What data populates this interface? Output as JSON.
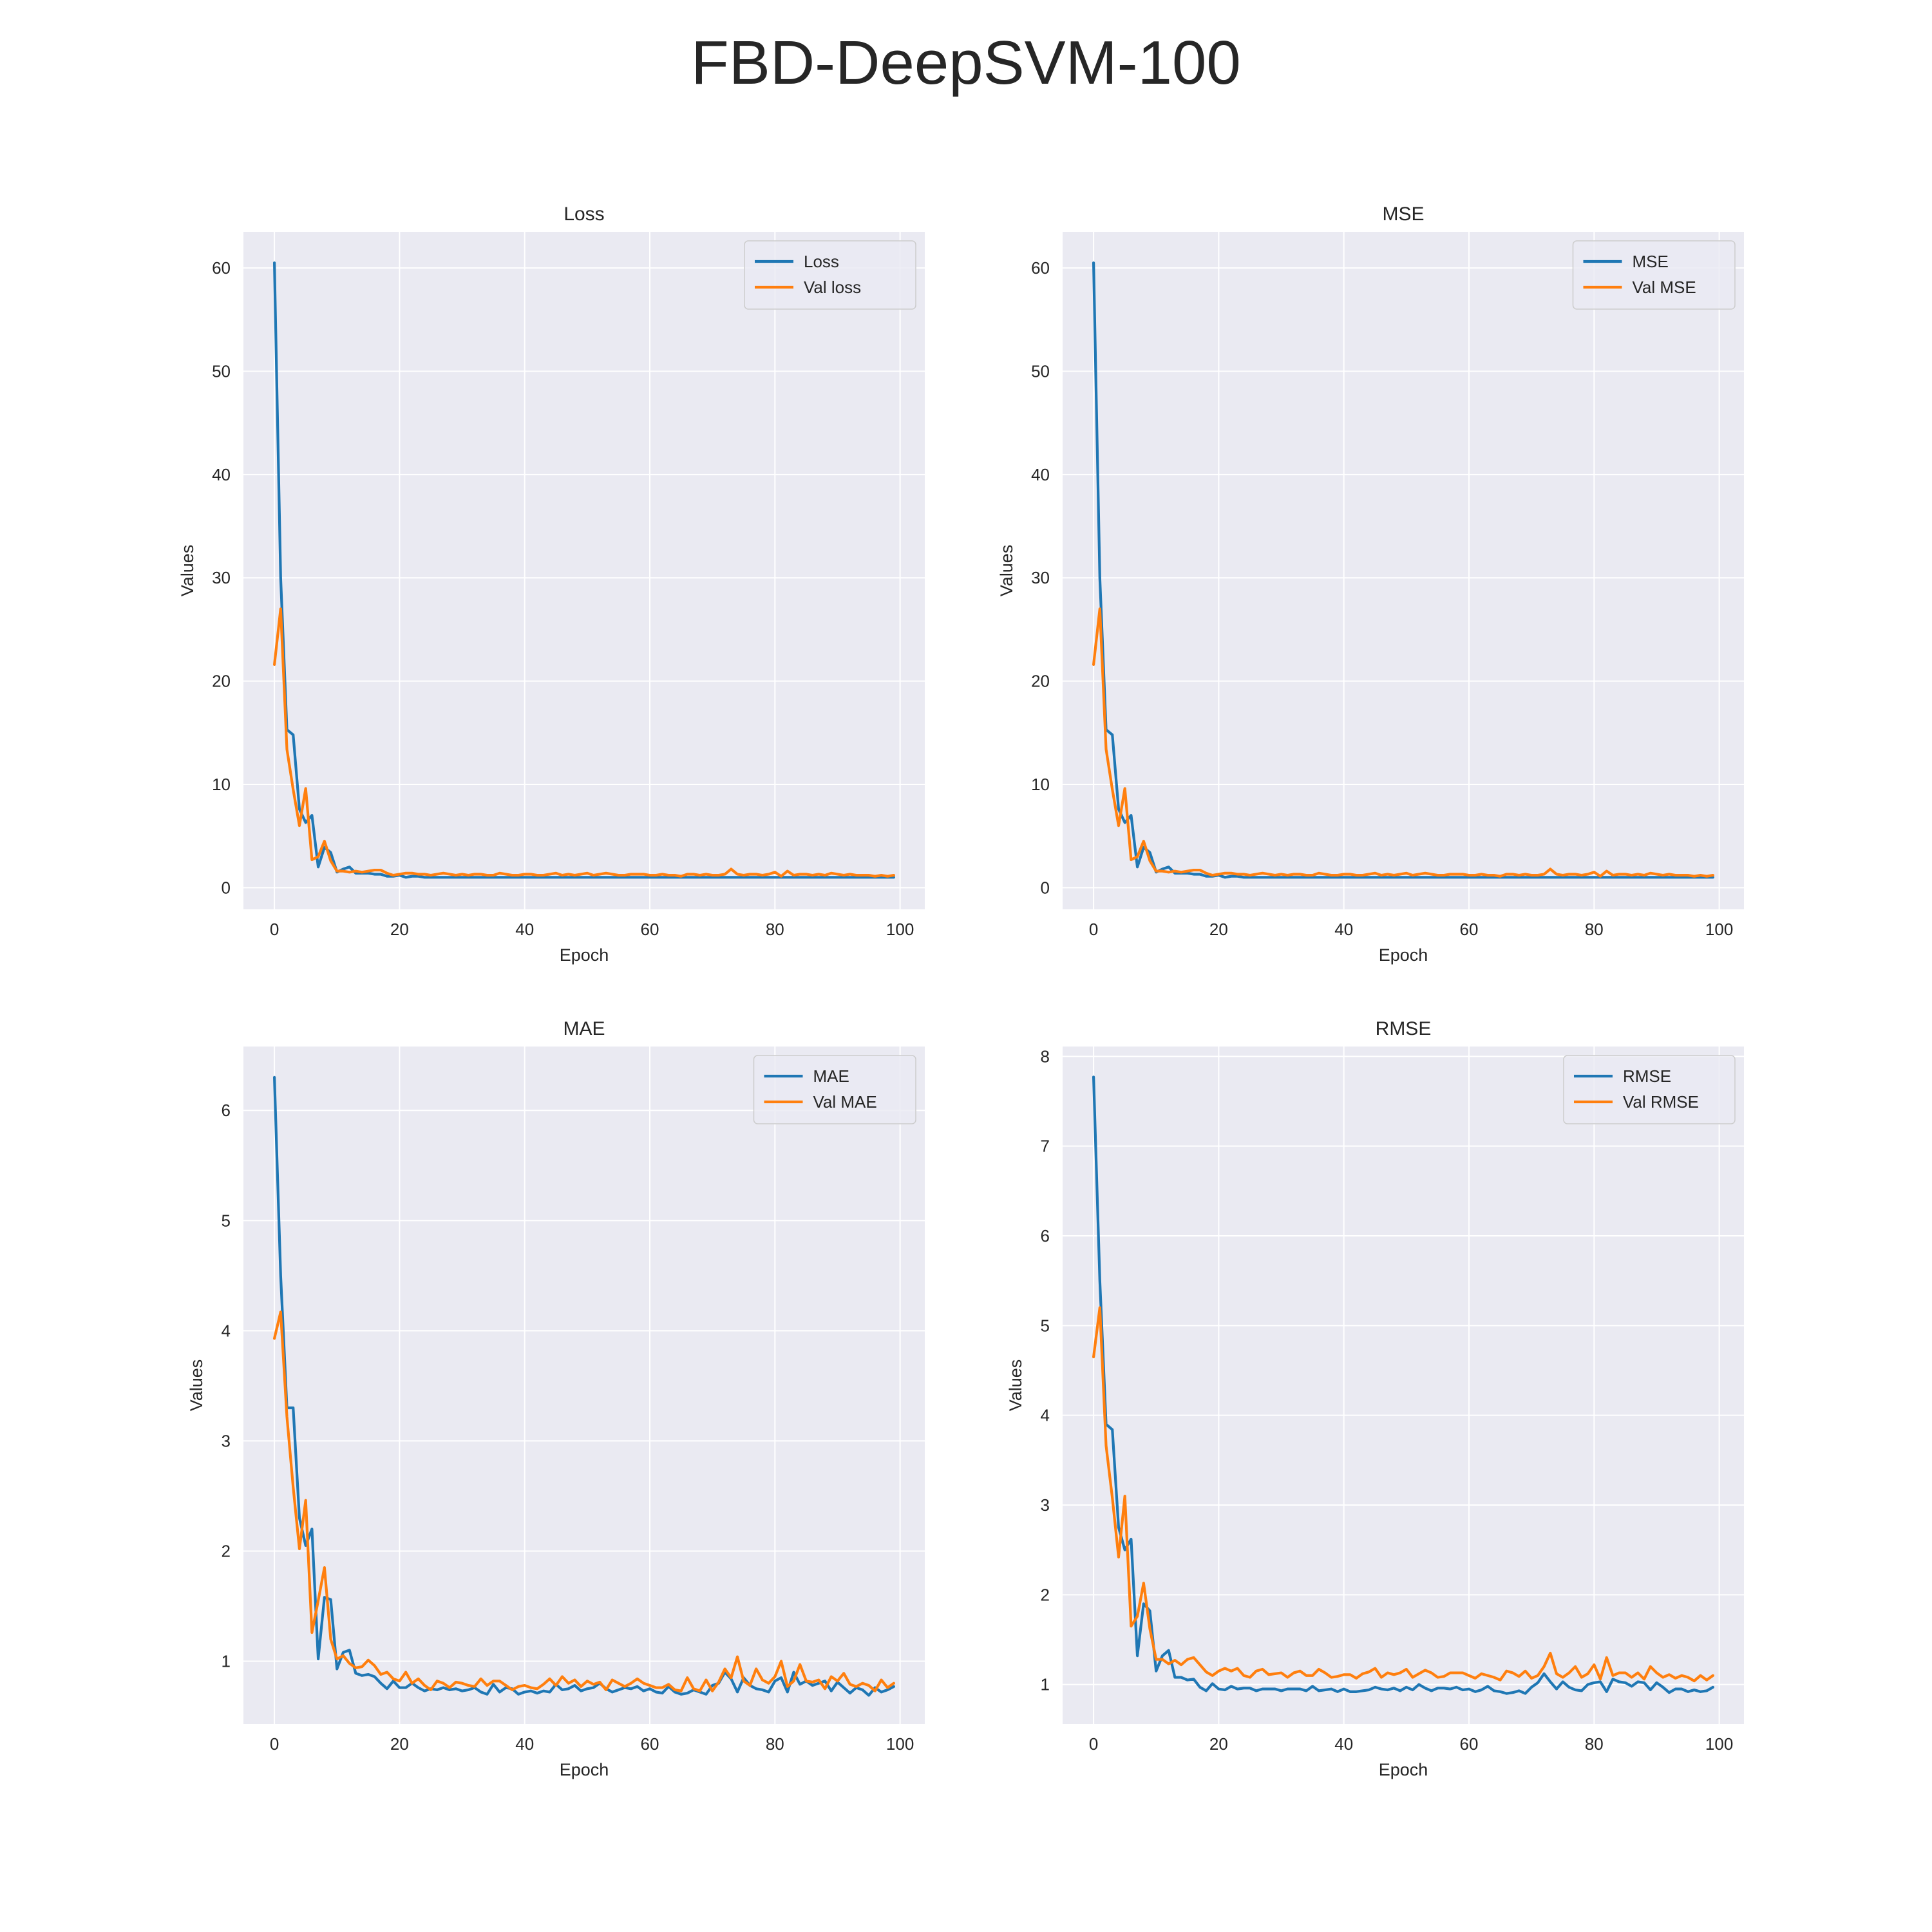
{
  "figure": {
    "title": "FBD-DeepSVM-100"
  },
  "colors": {
    "train": "#1f77b4",
    "val": "#ff7f0e",
    "panel_bg": "#eaeaf2",
    "grid": "#ffffff"
  },
  "chart_data": [
    {
      "type": "line",
      "title": "Loss",
      "xlabel": "Epoch",
      "ylabel": "Values",
      "xlim": [
        -4.95,
        103.95
      ],
      "ylim": [
        -2.1,
        63.5
      ],
      "xticks": [
        0,
        20,
        40,
        60,
        80,
        100
      ],
      "yticks": [
        0,
        10,
        20,
        30,
        40,
        50,
        60
      ],
      "grid": true,
      "legend_position": "top-right",
      "x": "0..99",
      "series": [
        {
          "name": "Loss",
          "color": "#1f77b4",
          "values": [
            60.5,
            30,
            15.3,
            14.8,
            7.6,
            6.3,
            7,
            2,
            3.9,
            3.4,
            1.5,
            1.8,
            2,
            1.4,
            1.4,
            1.4,
            1.3,
            1.3,
            1.1,
            1.1,
            1.2,
            1,
            1.1,
            1.1,
            1,
            1,
            1,
            1,
            1,
            1,
            1,
            1,
            1,
            1,
            1,
            1,
            1,
            1,
            1,
            1,
            1,
            1,
            1,
            1,
            1,
            1,
            1,
            1,
            1,
            1,
            1,
            1,
            1,
            1,
            1,
            1,
            1,
            1,
            1,
            1,
            1,
            1,
            1,
            1,
            1,
            1,
            1,
            1,
            1,
            1,
            1,
            1,
            1,
            1,
            1,
            1,
            1,
            1,
            1,
            1,
            1,
            1,
            1,
            1,
            1,
            1,
            1,
            1,
            1,
            1,
            1,
            1,
            1,
            1,
            1,
            1,
            1,
            1,
            1,
            1
          ]
        },
        {
          "name": "Val loss",
          "color": "#ff7f0e",
          "values": [
            21.6,
            27,
            13.4,
            9.5,
            6,
            9.6,
            2.7,
            3,
            4.5,
            2.6,
            1.6,
            1.6,
            1.5,
            1.6,
            1.5,
            1.6,
            1.7,
            1.7,
            1.4,
            1.2,
            1.3,
            1.4,
            1.4,
            1.3,
            1.3,
            1.2,
            1.3,
            1.4,
            1.3,
            1.2,
            1.3,
            1.2,
            1.3,
            1.3,
            1.2,
            1.2,
            1.4,
            1.3,
            1.2,
            1.2,
            1.3,
            1.3,
            1.2,
            1.2,
            1.3,
            1.4,
            1.2,
            1.3,
            1.2,
            1.3,
            1.4,
            1.2,
            1.3,
            1.4,
            1.3,
            1.2,
            1.2,
            1.3,
            1.3,
            1.3,
            1.2,
            1.2,
            1.3,
            1.2,
            1.2,
            1.1,
            1.3,
            1.3,
            1.2,
            1.3,
            1.2,
            1.2,
            1.3,
            1.8,
            1.3,
            1.2,
            1.3,
            1.3,
            1.2,
            1.3,
            1.5,
            1.1,
            1.6,
            1.2,
            1.3,
            1.3,
            1.2,
            1.3,
            1.2,
            1.4,
            1.3,
            1.2,
            1.3,
            1.2,
            1.2,
            1.2,
            1.1,
            1.2,
            1.1,
            1.2
          ]
        }
      ]
    },
    {
      "type": "line",
      "title": "MSE",
      "xlabel": "Epoch",
      "ylabel": "Values",
      "xlim": [
        -4.95,
        103.95
      ],
      "ylim": [
        -2.1,
        63.5
      ],
      "xticks": [
        0,
        20,
        40,
        60,
        80,
        100
      ],
      "yticks": [
        0,
        10,
        20,
        30,
        40,
        50,
        60
      ],
      "grid": true,
      "legend_position": "top-right",
      "x": "0..99",
      "series": [
        {
          "name": "MSE",
          "color": "#1f77b4",
          "values": [
            60.5,
            30,
            15.3,
            14.8,
            7.6,
            6.3,
            7,
            2,
            3.9,
            3.4,
            1.5,
            1.8,
            2,
            1.4,
            1.4,
            1.4,
            1.3,
            1.3,
            1.1,
            1.1,
            1.2,
            1,
            1.1,
            1.1,
            1,
            1,
            1,
            1,
            1,
            1,
            1,
            1,
            1,
            1,
            1,
            1,
            1,
            1,
            1,
            1,
            1,
            1,
            1,
            1,
            1,
            1,
            1,
            1,
            1,
            1,
            1,
            1,
            1,
            1,
            1,
            1,
            1,
            1,
            1,
            1,
            1,
            1,
            1,
            1,
            1,
            1,
            1,
            1,
            1,
            1,
            1,
            1,
            1,
            1,
            1,
            1,
            1,
            1,
            1,
            1,
            1,
            1,
            1,
            1,
            1,
            1,
            1,
            1,
            1,
            1,
            1,
            1,
            1,
            1,
            1,
            1,
            1,
            1,
            1,
            1
          ]
        },
        {
          "name": "Val MSE",
          "color": "#ff7f0e",
          "values": [
            21.6,
            27,
            13.4,
            9.5,
            6,
            9.6,
            2.7,
            3,
            4.5,
            2.6,
            1.6,
            1.6,
            1.5,
            1.6,
            1.5,
            1.6,
            1.7,
            1.7,
            1.4,
            1.2,
            1.3,
            1.4,
            1.4,
            1.3,
            1.3,
            1.2,
            1.3,
            1.4,
            1.3,
            1.2,
            1.3,
            1.2,
            1.3,
            1.3,
            1.2,
            1.2,
            1.4,
            1.3,
            1.2,
            1.2,
            1.3,
            1.3,
            1.2,
            1.2,
            1.3,
            1.4,
            1.2,
            1.3,
            1.2,
            1.3,
            1.4,
            1.2,
            1.3,
            1.4,
            1.3,
            1.2,
            1.2,
            1.3,
            1.3,
            1.3,
            1.2,
            1.2,
            1.3,
            1.2,
            1.2,
            1.1,
            1.3,
            1.3,
            1.2,
            1.3,
            1.2,
            1.2,
            1.3,
            1.8,
            1.3,
            1.2,
            1.3,
            1.3,
            1.2,
            1.3,
            1.5,
            1.1,
            1.6,
            1.2,
            1.3,
            1.3,
            1.2,
            1.3,
            1.2,
            1.4,
            1.3,
            1.2,
            1.3,
            1.2,
            1.2,
            1.2,
            1.1,
            1.2,
            1.1,
            1.2
          ]
        }
      ]
    },
    {
      "type": "line",
      "title": "MAE",
      "xlabel": "Epoch",
      "ylabel": "Values",
      "xlim": [
        -4.95,
        103.95
      ],
      "ylim": [
        0.43,
        6.58
      ],
      "xticks": [
        0,
        20,
        40,
        60,
        80,
        100
      ],
      "yticks": [
        1,
        2,
        3,
        4,
        5,
        6
      ],
      "grid": true,
      "legend_position": "top-right",
      "x": "0..99",
      "series": [
        {
          "name": "MAE",
          "color": "#1f77b4",
          "values": [
            6.3,
            4.5,
            3.3,
            3.3,
            2.3,
            2.05,
            2.2,
            1.02,
            1.58,
            1.56,
            0.93,
            1.08,
            1.1,
            0.89,
            0.87,
            0.88,
            0.86,
            0.8,
            0.75,
            0.82,
            0.76,
            0.76,
            0.8,
            0.76,
            0.73,
            0.75,
            0.74,
            0.76,
            0.74,
            0.75,
            0.73,
            0.74,
            0.76,
            0.72,
            0.7,
            0.79,
            0.72,
            0.76,
            0.75,
            0.7,
            0.72,
            0.73,
            0.71,
            0.73,
            0.72,
            0.79,
            0.74,
            0.75,
            0.78,
            0.73,
            0.75,
            0.76,
            0.8,
            0.75,
            0.72,
            0.74,
            0.76,
            0.75,
            0.77,
            0.73,
            0.75,
            0.72,
            0.71,
            0.77,
            0.72,
            0.7,
            0.71,
            0.74,
            0.72,
            0.7,
            0.78,
            0.8,
            0.9,
            0.84,
            0.72,
            0.85,
            0.78,
            0.75,
            0.74,
            0.72,
            0.82,
            0.85,
            0.72,
            0.9,
            0.79,
            0.82,
            0.78,
            0.8,
            0.82,
            0.73,
            0.81,
            0.76,
            0.71,
            0.76,
            0.74,
            0.69,
            0.76,
            0.72,
            0.74,
            0.77
          ]
        },
        {
          "name": "Val MAE",
          "color": "#ff7f0e",
          "values": [
            3.93,
            4.17,
            3.22,
            2.58,
            2.02,
            2.46,
            1.26,
            1.55,
            1.85,
            1.2,
            1.02,
            1.05,
            0.98,
            0.94,
            0.95,
            1.01,
            0.96,
            0.88,
            0.9,
            0.84,
            0.82,
            0.9,
            0.8,
            0.84,
            0.78,
            0.74,
            0.82,
            0.8,
            0.76,
            0.81,
            0.8,
            0.78,
            0.77,
            0.84,
            0.78,
            0.82,
            0.82,
            0.78,
            0.74,
            0.77,
            0.78,
            0.76,
            0.75,
            0.79,
            0.84,
            0.78,
            0.86,
            0.8,
            0.83,
            0.77,
            0.82,
            0.79,
            0.81,
            0.74,
            0.83,
            0.8,
            0.77,
            0.8,
            0.84,
            0.8,
            0.78,
            0.76,
            0.76,
            0.79,
            0.74,
            0.73,
            0.85,
            0.75,
            0.73,
            0.83,
            0.73,
            0.81,
            0.93,
            0.85,
            1.04,
            0.82,
            0.78,
            0.93,
            0.83,
            0.8,
            0.86,
            1.0,
            0.77,
            0.82,
            0.97,
            0.82,
            0.81,
            0.83,
            0.75,
            0.86,
            0.82,
            0.89,
            0.79,
            0.77,
            0.8,
            0.78,
            0.73,
            0.83,
            0.76,
            0.8
          ]
        }
      ]
    },
    {
      "type": "line",
      "title": "RMSE",
      "xlabel": "Epoch",
      "ylabel": "Values",
      "xlim": [
        -4.95,
        103.95
      ],
      "ylim": [
        0.56,
        8.11
      ],
      "xticks": [
        0,
        20,
        40,
        60,
        80,
        100
      ],
      "yticks": [
        1,
        2,
        3,
        4,
        5,
        6,
        7,
        8
      ],
      "grid": true,
      "legend_position": "top-right",
      "x": "0..99",
      "series": [
        {
          "name": "RMSE",
          "color": "#1f77b4",
          "values": [
            7.77,
            5.5,
            3.9,
            3.84,
            2.75,
            2.5,
            2.62,
            1.32,
            1.9,
            1.82,
            1.15,
            1.32,
            1.38,
            1.08,
            1.08,
            1.05,
            1.06,
            0.97,
            0.93,
            1.01,
            0.95,
            0.94,
            0.98,
            0.95,
            0.96,
            0.96,
            0.93,
            0.95,
            0.95,
            0.95,
            0.93,
            0.95,
            0.95,
            0.95,
            0.93,
            0.98,
            0.93,
            0.94,
            0.95,
            0.92,
            0.95,
            0.92,
            0.92,
            0.93,
            0.94,
            0.97,
            0.95,
            0.94,
            0.96,
            0.93,
            0.97,
            0.94,
            1.0,
            0.96,
            0.93,
            0.96,
            0.96,
            0.95,
            0.97,
            0.94,
            0.95,
            0.92,
            0.94,
            0.98,
            0.93,
            0.92,
            0.9,
            0.91,
            0.93,
            0.9,
            0.97,
            1.02,
            1.12,
            1.03,
            0.95,
            1.03,
            0.97,
            0.94,
            0.93,
            1.0,
            1.02,
            1.03,
            0.92,
            1.06,
            1.03,
            1.02,
            0.98,
            1.03,
            1.02,
            0.94,
            1.02,
            0.97,
            0.91,
            0.95,
            0.95,
            0.92,
            0.94,
            0.92,
            0.93,
            0.97
          ]
        },
        {
          "name": "Val RMSE",
          "color": "#ff7f0e",
          "values": [
            4.65,
            5.2,
            3.66,
            3.08,
            2.42,
            3.1,
            1.65,
            1.76,
            2.13,
            1.62,
            1.28,
            1.28,
            1.23,
            1.27,
            1.22,
            1.28,
            1.3,
            1.22,
            1.14,
            1.1,
            1.15,
            1.18,
            1.15,
            1.18,
            1.1,
            1.08,
            1.15,
            1.17,
            1.11,
            1.12,
            1.13,
            1.08,
            1.13,
            1.15,
            1.1,
            1.1,
            1.17,
            1.13,
            1.08,
            1.09,
            1.11,
            1.11,
            1.07,
            1.12,
            1.14,
            1.18,
            1.08,
            1.13,
            1.11,
            1.13,
            1.17,
            1.08,
            1.12,
            1.16,
            1.13,
            1.08,
            1.09,
            1.13,
            1.13,
            1.13,
            1.1,
            1.07,
            1.12,
            1.1,
            1.08,
            1.05,
            1.15,
            1.13,
            1.09,
            1.15,
            1.07,
            1.1,
            1.2,
            1.35,
            1.12,
            1.08,
            1.13,
            1.2,
            1.08,
            1.12,
            1.22,
            1.06,
            1.3,
            1.1,
            1.13,
            1.13,
            1.08,
            1.13,
            1.06,
            1.2,
            1.13,
            1.08,
            1.11,
            1.07,
            1.1,
            1.08,
            1.04,
            1.1,
            1.05,
            1.1
          ]
        }
      ]
    }
  ]
}
